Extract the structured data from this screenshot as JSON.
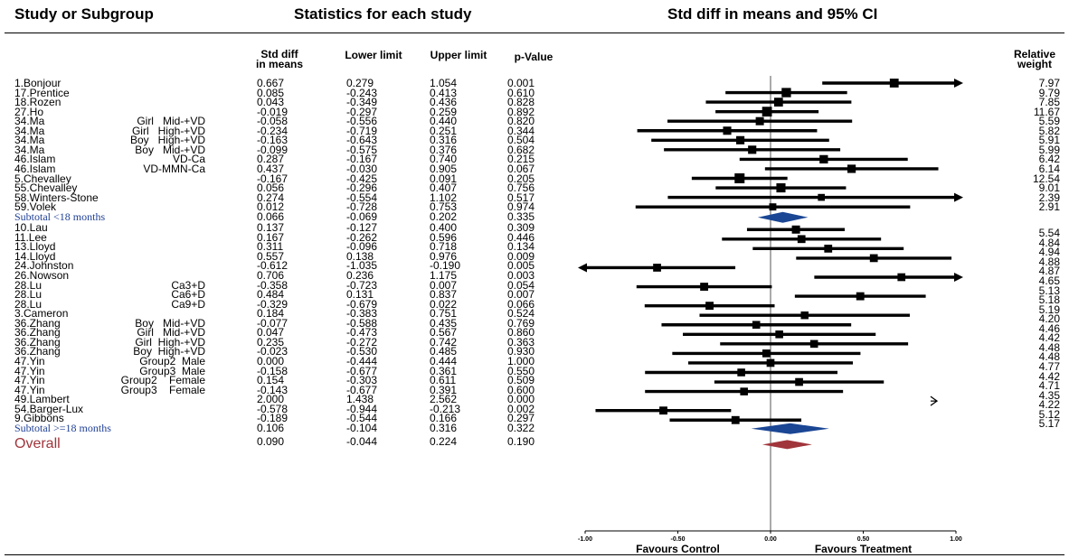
{
  "headers": {
    "study": "Study or Subgroup",
    "stats": "Statistics for each study",
    "plot": "Std diff in means and 95% CI"
  },
  "columns": {
    "std_diff_l1": "Std diff",
    "std_diff_l2": "in means",
    "lower": "Lower limit",
    "upper": "Upper limit",
    "p": "p-Value",
    "weight_l1": "Relative",
    "weight_l2": "weight"
  },
  "chart_data": {
    "type": "table",
    "subtype": "forest",
    "x_ticks": [
      "-1.00",
      "-0.50",
      "0.00",
      "0.50",
      "1.00"
    ],
    "xlim": [
      -1.0,
      1.0
    ],
    "xlabel_left": "Favours Control",
    "xlabel_right": "Favours Treatment",
    "colors": {
      "subtotal_diamond": "#1a4694",
      "overall_diamond": "#a0353b",
      "subtotal_text": "#1f3f94",
      "overall_text": "#a0353b"
    },
    "rows": [
      {
        "study": "1.Bonjour",
        "sub": "",
        "d": "0.667",
        "lo": "0.279",
        "hi": "1.054",
        "p": "0.001",
        "w": "7.97",
        "type": "study"
      },
      {
        "study": "17.Prentice",
        "sub": "",
        "d": "0.085",
        "lo": "-0.243",
        "hi": "0.413",
        "p": "0.610",
        "w": "9.79",
        "type": "study"
      },
      {
        "study": "18.Rozen",
        "sub": "",
        "d": "0.043",
        "lo": "-0.349",
        "hi": "0.436",
        "p": "0.828",
        "w": "7.85",
        "type": "study"
      },
      {
        "study": "27.Ho",
        "sub": "",
        "d": "-0.019",
        "lo": "-0.297",
        "hi": "0.259",
        "p": "0.892",
        "w": "11.67",
        "type": "study"
      },
      {
        "study": "34.Ma",
        "sub": "Girl   Mid-+VD",
        "d": "-0.058",
        "lo": "-0.556",
        "hi": "0.440",
        "p": "0.820",
        "w": "5.59",
        "type": "study"
      },
      {
        "study": "34.Ma",
        "sub": "Girl   High-+VD",
        "d": "-0.234",
        "lo": "-0.719",
        "hi": "0.251",
        "p": "0.344",
        "w": "5.82",
        "type": "study"
      },
      {
        "study": "34.Ma",
        "sub": "Boy   High-+VD",
        "d": "-0.163",
        "lo": "-0.643",
        "hi": "0.316",
        "p": "0.504",
        "w": "5.91",
        "type": "study"
      },
      {
        "study": "34.Ma",
        "sub": "Boy   Mid-+VD",
        "d": "-0.099",
        "lo": "-0.575",
        "hi": "0.376",
        "p": "0.682",
        "w": "5.99",
        "type": "study"
      },
      {
        "study": "46.Islam",
        "sub": "VD-Ca",
        "d": "0.287",
        "lo": "-0.167",
        "hi": "0.740",
        "p": "0.215",
        "w": "6.42",
        "type": "study"
      },
      {
        "study": "46.Islam",
        "sub": "VD-MMN-Ca",
        "d": "0.437",
        "lo": "-0.030",
        "hi": "0.905",
        "p": "0.067",
        "w": "6.14",
        "type": "study"
      },
      {
        "study": "5.Chevalley",
        "sub": "",
        "d": "-0.167",
        "lo": "-0.425",
        "hi": "0.091",
        "p": "0.205",
        "w": "12.54",
        "type": "study"
      },
      {
        "study": "55.Chevalley",
        "sub": "",
        "d": "0.056",
        "lo": "-0.296",
        "hi": "0.407",
        "p": "0.756",
        "w": "9.01",
        "type": "study"
      },
      {
        "study": "58.Winters-Stone",
        "sub": "",
        "d": "0.274",
        "lo": "-0.554",
        "hi": "1.102",
        "p": "0.517",
        "w": "2.39",
        "type": "study"
      },
      {
        "study": "59.Volek",
        "sub": "",
        "d": "0.012",
        "lo": "-0.728",
        "hi": "0.753",
        "p": "0.974",
        "w": "2.91",
        "type": "study"
      },
      {
        "study": "Subtotal   <18 months",
        "sub": "",
        "d": "0.066",
        "lo": "-0.069",
        "hi": "0.202",
        "p": "0.335",
        "w": "",
        "type": "subtotal"
      },
      {
        "study": "10.Lau",
        "sub": "",
        "d": "0.137",
        "lo": "-0.127",
        "hi": "0.400",
        "p": "0.309",
        "w": "5.54",
        "type": "study"
      },
      {
        "study": "11.Lee",
        "sub": "",
        "d": "0.167",
        "lo": "-0.262",
        "hi": "0.596",
        "p": "0.446",
        "w": "4.84",
        "type": "study"
      },
      {
        "study": "13.Lloyd",
        "sub": "",
        "d": "0.311",
        "lo": "-0.096",
        "hi": "0.718",
        "p": "0.134",
        "w": "4.94",
        "type": "study"
      },
      {
        "study": "14.Lloyd",
        "sub": "",
        "d": "0.557",
        "lo": "0.138",
        "hi": "0.976",
        "p": "0.009",
        "w": "4.88",
        "type": "study"
      },
      {
        "study": "24.Johnston",
        "sub": "",
        "d": "-0.612",
        "lo": "-1.035",
        "hi": "-0.190",
        "p": "0.005",
        "w": "4.87",
        "type": "study"
      },
      {
        "study": "26.Nowson",
        "sub": "",
        "d": "0.706",
        "lo": "0.236",
        "hi": "1.175",
        "p": "0.003",
        "w": "4.65",
        "type": "study"
      },
      {
        "study": "28.Lu",
        "sub": "Ca3+D",
        "d": "-0.358",
        "lo": "-0.723",
        "hi": "0.007",
        "p": "0.054",
        "w": "5.13",
        "type": "study"
      },
      {
        "study": "28.Lu",
        "sub": "Ca6+D",
        "d": "0.484",
        "lo": "0.131",
        "hi": "0.837",
        "p": "0.007",
        "w": "5.18",
        "type": "study"
      },
      {
        "study": "28.Lu",
        "sub": "Ca9+D",
        "d": "-0.329",
        "lo": "-0.679",
        "hi": "0.022",
        "p": "0.066",
        "w": "5.19",
        "type": "study"
      },
      {
        "study": "3.Cameron",
        "sub": "",
        "d": "0.184",
        "lo": "-0.383",
        "hi": "0.751",
        "p": "0.524",
        "w": "4.20",
        "type": "study"
      },
      {
        "study": "36.Zhang",
        "sub": "Boy   Mid-+VD",
        "d": "-0.077",
        "lo": "-0.588",
        "hi": "0.435",
        "p": "0.769",
        "w": "4.46",
        "type": "study"
      },
      {
        "study": "36.Zhang",
        "sub": "Girl   Mid-+VD",
        "d": "0.047",
        "lo": "-0.473",
        "hi": "0.567",
        "p": "0.860",
        "w": "4.42",
        "type": "study"
      },
      {
        "study": "36.Zhang",
        "sub": "Girl  High-+VD",
        "d": "0.235",
        "lo": "-0.272",
        "hi": "0.742",
        "p": "0.363",
        "w": "4.48",
        "type": "study"
      },
      {
        "study": "36.Zhang",
        "sub": "Boy  High-+VD",
        "d": "-0.023",
        "lo": "-0.530",
        "hi": "0.485",
        "p": "0.930",
        "w": "4.48",
        "type": "study"
      },
      {
        "study": "47.Yin",
        "sub": "Group2  Male",
        "d": "0.000",
        "lo": "-0.444",
        "hi": "0.444",
        "p": "1.000",
        "w": "4.77",
        "type": "study"
      },
      {
        "study": "47.Yin",
        "sub": "Group3  Male",
        "d": "-0.158",
        "lo": "-0.677",
        "hi": "0.361",
        "p": "0.550",
        "w": "4.42",
        "type": "study"
      },
      {
        "study": "47.Yin",
        "sub": "Group2    Female",
        "d": "0.154",
        "lo": "-0.303",
        "hi": "0.611",
        "p": "0.509",
        "w": "4.71",
        "type": "study"
      },
      {
        "study": "47.Yin",
        "sub": "Group3    Female",
        "d": "-0.143",
        "lo": "-0.677",
        "hi": "0.391",
        "p": "0.600",
        "w": "4.35",
        "type": "study"
      },
      {
        "study": "49.Lambert",
        "sub": "",
        "d": "2.000",
        "lo": "1.438",
        "hi": "2.562",
        "p": "0.000",
        "w": "4.22",
        "type": "study"
      },
      {
        "study": "54.Barger-Lux",
        "sub": "",
        "d": "-0.578",
        "lo": "-0.944",
        "hi": "-0.213",
        "p": "0.002",
        "w": "5.12",
        "type": "study"
      },
      {
        "study": "9.Gibbons",
        "sub": "",
        "d": "-0.189",
        "lo": "-0.544",
        "hi": "0.166",
        "p": "0.297",
        "w": "5.17",
        "type": "study"
      },
      {
        "study": "Subtotal   >=18 months",
        "sub": "",
        "d": "0.106",
        "lo": "-0.104",
        "hi": "0.316",
        "p": "0.322",
        "w": "",
        "type": "subtotal"
      },
      {
        "study": "Overall",
        "sub": "",
        "d": "0.090",
        "lo": "-0.044",
        "hi": "0.224",
        "p": "0.190",
        "w": "",
        "type": "overall"
      }
    ]
  }
}
